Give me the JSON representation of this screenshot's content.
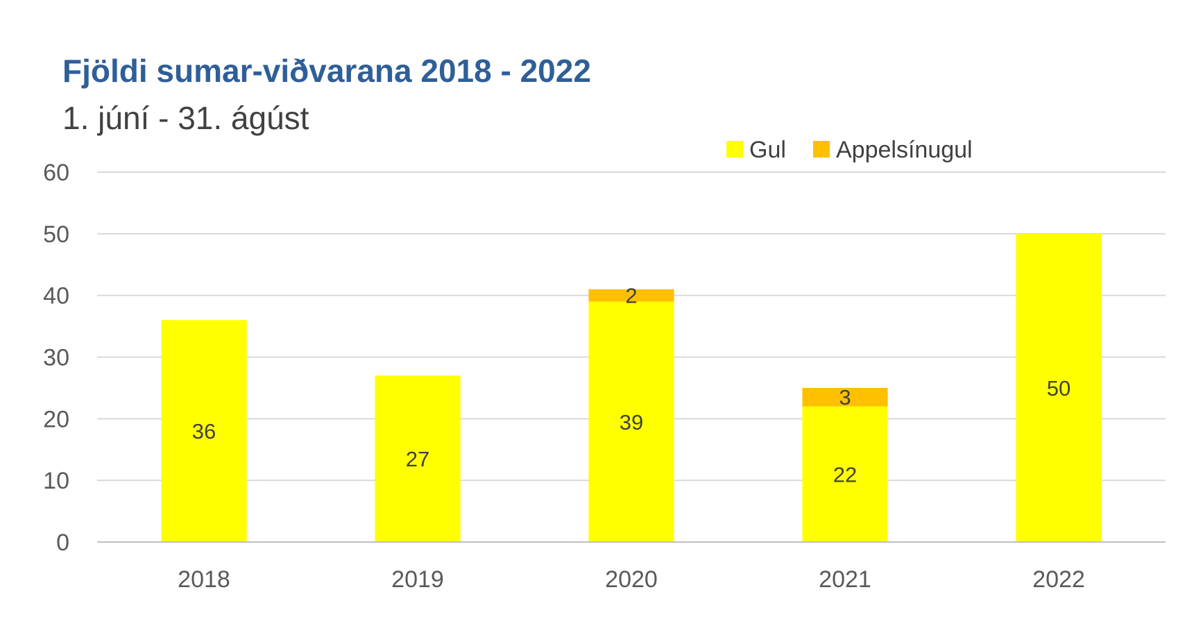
{
  "chart_data": {
    "type": "bar",
    "stacked": true,
    "title": "Fjöldi sumar-viðvarana 2018 - 2022",
    "subtitle": "1. júní - 31. ágúst",
    "categories": [
      "2018",
      "2019",
      "2020",
      "2021",
      "2022"
    ],
    "series": [
      {
        "name": "Gul",
        "color": "#FFFF00",
        "values": [
          36,
          27,
          39,
          22,
          50
        ]
      },
      {
        "name": "Appelsínugul",
        "color": "#FFC000",
        "values": [
          0,
          0,
          2,
          3,
          0
        ]
      }
    ],
    "data_labels": [
      [
        "36",
        "27",
        "39",
        "22",
        "50"
      ],
      [
        "",
        "",
        "2",
        "3",
        ""
      ]
    ],
    "ylim": [
      0,
      60
    ],
    "yticks": [
      0,
      10,
      20,
      30,
      40,
      50,
      60
    ],
    "grid": true,
    "legend_position": "top-right",
    "xlabel": "",
    "ylabel": ""
  },
  "colors": {
    "title": "#2F5F98",
    "subtitle": "#404040",
    "gridline": "#D9D9D9",
    "axis": "#BFBFBF"
  }
}
